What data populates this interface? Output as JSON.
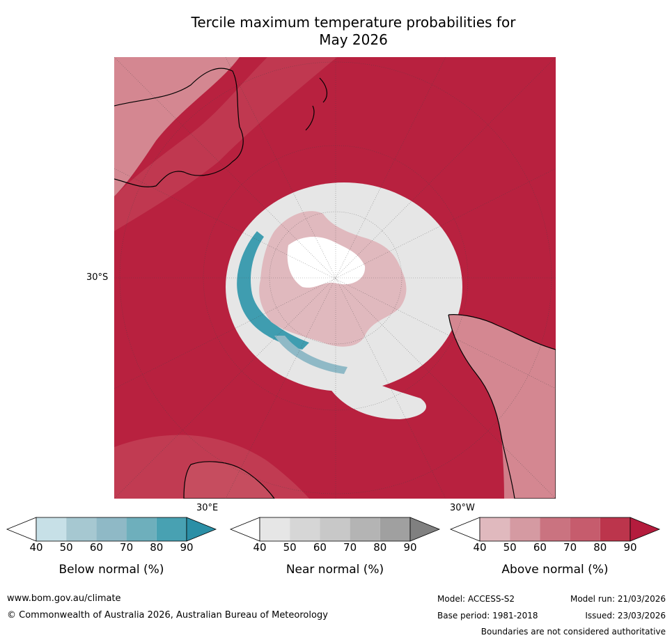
{
  "title_line1": "Tercile maximum temperature probabilities for",
  "title_line2": "May 2026",
  "map": {
    "lat_label": "30°S",
    "lon_label_east": "30°E",
    "lon_label_west": "30°W",
    "colors": {
      "above_strong": "#b8213f",
      "above_mid": "#c64d5f",
      "above_light": "#d48791",
      "above_faint": "#e0b9be",
      "near_light": "#e6e6e6",
      "below_light": "#c7e0e7",
      "below_mid": "#8fb9c6",
      "below_strong": "#3f9db0",
      "land_outline": "#000000"
    }
  },
  "colorbars": [
    {
      "label": "Below normal (%)",
      "ticks": [
        "40",
        "50",
        "60",
        "70",
        "80",
        "90"
      ],
      "colors": [
        "#ffffff",
        "#c7e0e7",
        "#a6c8d1",
        "#8fb9c6",
        "#6eafbc",
        "#48a1b2",
        "#2b8fa6"
      ]
    },
    {
      "label": "Near normal (%)",
      "ticks": [
        "40",
        "50",
        "60",
        "70",
        "80",
        "90"
      ],
      "colors": [
        "#ffffff",
        "#e6e6e6",
        "#d6d6d6",
        "#c8c8c8",
        "#b4b4b4",
        "#a0a0a0",
        "#808080"
      ]
    },
    {
      "label": "Above normal (%)",
      "ticks": [
        "40",
        "50",
        "60",
        "70",
        "80",
        "90"
      ],
      "colors": [
        "#ffffff",
        "#e0b9be",
        "#d59aa2",
        "#ca7380",
        "#c65c6d",
        "#bc354c",
        "#b41c3d"
      ]
    }
  ],
  "footer": {
    "website": "www.bom.gov.au/climate",
    "copyright": "© Commonwealth of Australia 2026, Australian Bureau of Meteorology",
    "model": "Model: ACCESS-S2",
    "model_run": "Model run: 21/03/2026",
    "base_period": "Base period: 1981-2018",
    "issued": "Issued: 23/03/2026",
    "disclaimer": "Boundaries are not considered authoritative"
  }
}
